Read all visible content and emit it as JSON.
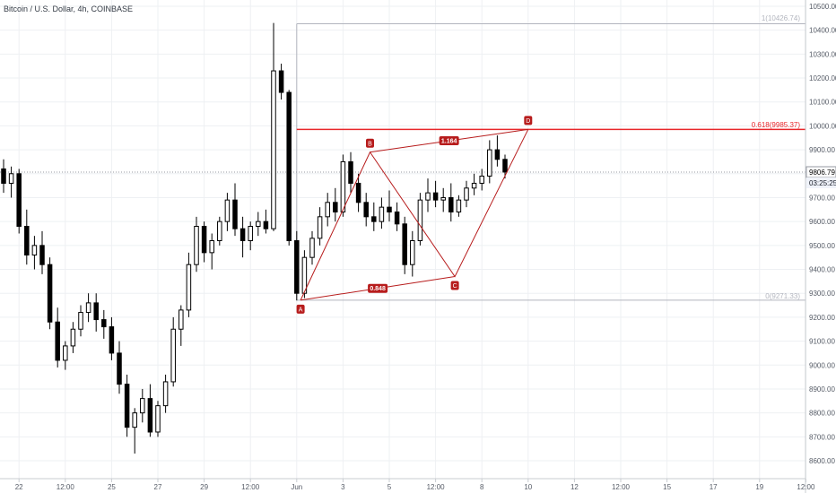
{
  "header": {
    "title": "Bitcoin / U.S. Dollar, 4h, COINBASE"
  },
  "price_badges": {
    "last_price": "9806.79",
    "countdown": "03:25:25"
  },
  "fib_labels": {
    "top": "1(10426.74)",
    "mid": "0.618(9985.37)",
    "bottom": "0(9271.33)"
  },
  "pattern": {
    "points": [
      {
        "label": "A",
        "x": 73.5,
        "price": 9271.33
      },
      {
        "label": "B",
        "x": 82.5,
        "price": 9890
      },
      {
        "label": "C",
        "x": 93.5,
        "price": 9370
      },
      {
        "label": "D",
        "x": 103,
        "price": 9985.37
      }
    ],
    "ratios": [
      {
        "label": "1.164",
        "between": [
          "B",
          "D"
        ]
      },
      {
        "label": "0.848",
        "between": [
          "A",
          "C"
        ]
      }
    ]
  },
  "colors": {
    "candle": "#000000",
    "fib_line": "#e8262a",
    "fib_box": "#b2b5be",
    "pattern": "#b71c1c",
    "price_badge": "#ffffff",
    "countdown_badge": "#f0f3fa"
  },
  "chart_data": {
    "type": "candlestick",
    "x_ticks": [
      {
        "x": 2,
        "label": "22"
      },
      {
        "x": 8,
        "label": "12:00"
      },
      {
        "x": 14,
        "label": "25"
      },
      {
        "x": 20,
        "label": "27"
      },
      {
        "x": 26,
        "label": "29"
      },
      {
        "x": 32,
        "label": "12:00"
      },
      {
        "x": 38,
        "label": "Jun"
      },
      {
        "x": 44,
        "label": "3"
      },
      {
        "x": 50,
        "label": "5"
      },
      {
        "x": 56,
        "label": "12:00"
      },
      {
        "x": 62,
        "label": "8"
      },
      {
        "x": 68,
        "label": "10"
      },
      {
        "x": 74,
        "label": "12"
      },
      {
        "x": 80,
        "label": "12:00"
      },
      {
        "x": 86,
        "label": "15"
      },
      {
        "x": 92,
        "label": "17"
      },
      {
        "x": 98,
        "label": "19"
      },
      {
        "x": 104,
        "label": "12:00"
      },
      {
        "x": 110,
        "label": "22"
      }
    ],
    "y_ticks": [
      8600,
      8700,
      8800,
      8900,
      9000,
      9100,
      9200,
      9300,
      9400,
      9500,
      9600,
      9700,
      9800,
      9900,
      10000,
      10100,
      10200,
      10300,
      10400,
      10500
    ],
    "ylim": [
      8560,
      10520
    ],
    "last_price": 9806.79,
    "fib_levels": [
      {
        "ratio": 1,
        "price": 10426.74
      },
      {
        "ratio": 0.618,
        "price": 9985.37
      },
      {
        "ratio": 0,
        "price": 9271.33
      }
    ],
    "candles": [
      [
        0,
        9820,
        9860,
        9720,
        9760
      ],
      [
        1,
        9760,
        9830,
        9700,
        9800
      ],
      [
        2,
        9800,
        9820,
        9550,
        9580
      ],
      [
        3,
        9580,
        9650,
        9420,
        9460
      ],
      [
        4,
        9460,
        9540,
        9400,
        9500
      ],
      [
        5,
        9500,
        9560,
        9380,
        9420
      ],
      [
        6,
        9420,
        9450,
        9150,
        9180
      ],
      [
        7,
        9180,
        9240,
        8990,
        9020
      ],
      [
        8,
        9020,
        9100,
        8980,
        9080
      ],
      [
        9,
        9080,
        9180,
        9050,
        9150
      ],
      [
        10,
        9150,
        9250,
        9120,
        9220
      ],
      [
        11,
        9220,
        9300,
        9180,
        9260
      ],
      [
        12,
        9260,
        9300,
        9140,
        9190
      ],
      [
        13,
        9190,
        9230,
        9110,
        9160
      ],
      [
        14,
        9160,
        9200,
        9020,
        9050
      ],
      [
        15,
        9050,
        9100,
        8880,
        8920
      ],
      [
        16,
        8920,
        8960,
        8700,
        8740
      ],
      [
        17,
        8740,
        8820,
        8630,
        8800
      ],
      [
        18,
        8800,
        8900,
        8760,
        8860
      ],
      [
        19,
        8860,
        8920,
        8700,
        8720
      ],
      [
        20,
        8720,
        8850,
        8700,
        8830
      ],
      [
        21,
        8830,
        8960,
        8800,
        8930
      ],
      [
        22,
        8930,
        9200,
        8910,
        9150
      ],
      [
        23,
        9150,
        9250,
        9080,
        9230
      ],
      [
        24,
        9230,
        9470,
        9200,
        9420
      ],
      [
        25,
        9420,
        9620,
        9390,
        9580
      ],
      [
        26,
        9580,
        9600,
        9430,
        9470
      ],
      [
        27,
        9470,
        9550,
        9400,
        9520
      ],
      [
        28,
        9520,
        9620,
        9500,
        9600
      ],
      [
        29,
        9600,
        9720,
        9560,
        9690
      ],
      [
        30,
        9690,
        9760,
        9540,
        9570
      ],
      [
        31,
        9570,
        9620,
        9450,
        9520
      ],
      [
        32,
        9520,
        9600,
        9480,
        9580
      ],
      [
        33,
        9580,
        9640,
        9540,
        9600
      ],
      [
        34,
        9600,
        9650,
        9550,
        9570
      ],
      [
        35,
        9570,
        10430,
        9560,
        10230
      ],
      [
        36,
        10230,
        10260,
        10110,
        10140
      ],
      [
        37,
        10140,
        10150,
        9500,
        9520
      ],
      [
        38,
        9520,
        9560,
        9270,
        9300
      ],
      [
        39,
        9300,
        9480,
        9280,
        9450
      ],
      [
        40,
        9450,
        9560,
        9420,
        9530
      ],
      [
        41,
        9530,
        9660,
        9500,
        9620
      ],
      [
        42,
        9620,
        9720,
        9580,
        9680
      ],
      [
        43,
        9680,
        9740,
        9600,
        9640
      ],
      [
        44,
        9640,
        9880,
        9620,
        9850
      ],
      [
        45,
        9850,
        9890,
        9720,
        9760
      ],
      [
        46,
        9760,
        9800,
        9640,
        9680
      ],
      [
        47,
        9680,
        9720,
        9580,
        9620
      ],
      [
        48,
        9620,
        9680,
        9560,
        9600
      ],
      [
        49,
        9600,
        9700,
        9570,
        9660
      ],
      [
        50,
        9660,
        9730,
        9600,
        9640
      ],
      [
        51,
        9640,
        9680,
        9560,
        9590
      ],
      [
        52,
        9590,
        9620,
        9380,
        9420
      ],
      [
        53,
        9420,
        9560,
        9370,
        9520
      ],
      [
        54,
        9520,
        9720,
        9500,
        9690
      ],
      [
        55,
        9690,
        9780,
        9640,
        9720
      ],
      [
        56,
        9720,
        9770,
        9660,
        9690
      ],
      [
        57,
        9690,
        9740,
        9640,
        9700
      ],
      [
        58,
        9700,
        9760,
        9600,
        9640
      ],
      [
        59,
        9640,
        9710,
        9620,
        9690
      ],
      [
        60,
        9690,
        9770,
        9660,
        9740
      ],
      [
        61,
        9740,
        9800,
        9710,
        9760
      ],
      [
        62,
        9760,
        9820,
        9730,
        9790
      ],
      [
        63,
        9790,
        9940,
        9760,
        9900
      ],
      [
        64,
        9900,
        9960,
        9830,
        9860
      ],
      [
        65,
        9860,
        9880,
        9780,
        9806.79
      ]
    ]
  }
}
